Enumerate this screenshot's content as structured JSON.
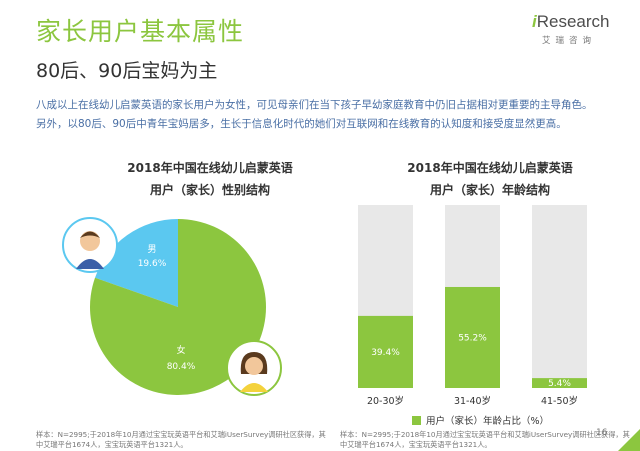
{
  "header": {
    "title": "家长用户基本属性",
    "subtitle": "80后、90后宝妈为主",
    "paragraph": [
      "八成以上在线幼儿启蒙英语的家长用户为女性，可见母亲们在当下孩子早幼家庭教育中仍旧占据相对更重要的主导角色。",
      "另外，以80后、90后中青年宝妈居多，生长于信息化时代的她们对互联网和在线教育的认知度和接受度显然更高。"
    ]
  },
  "logo": {
    "i": "i",
    "rest": "Research",
    "sub": "艾瑞咨询"
  },
  "colors": {
    "accent": "#8cc63f",
    "male": "#5bc8f0",
    "bar_bg": "#e8e8e8",
    "bar": "#8cc63f"
  },
  "chart_data": [
    {
      "type": "pie",
      "title": [
        "2018年中国在线幼儿启蒙英语",
        "用户（家长）性别结构"
      ],
      "slices": [
        {
          "label": "男",
          "value": 19.6,
          "display": "19.6%",
          "color": "#5bc8f0",
          "icon": "boy-avatar-icon"
        },
        {
          "label": "女",
          "value": 80.4,
          "display": "80.4%",
          "color": "#8cc63f",
          "icon": "girl-avatar-icon"
        }
      ]
    },
    {
      "type": "bar",
      "title": [
        "2018年中国在线幼儿启蒙英语",
        "用户（家长）年龄结构"
      ],
      "categories": [
        "20-30岁",
        "31-40岁",
        "41-50岁"
      ],
      "series": [
        {
          "name": "用户（家长）年龄占比（%）",
          "values": [
            39.4,
            55.2,
            5.4
          ]
        }
      ],
      "value_labels": [
        "39.4%",
        "55.2%",
        "5.4%"
      ],
      "ylim": [
        0,
        100
      ]
    }
  ],
  "legend": {
    "label": "用户（家长）年龄占比（%）"
  },
  "footnote": [
    "样本：N=2995;于2018年10月通过宝宝玩英语平台和艾瑞iUserSurvey调研社区获得，其",
    "中艾瑞平台1674人，宝宝玩英语平台1321人。",
    "样本：N=2995;于2018年10月通过宝宝玩英语平台和艾瑞iUserSurvey调研社区获得，其",
    "中艾瑞平台1674人，宝宝玩英语平台1321人。"
  ],
  "page_number": "16"
}
